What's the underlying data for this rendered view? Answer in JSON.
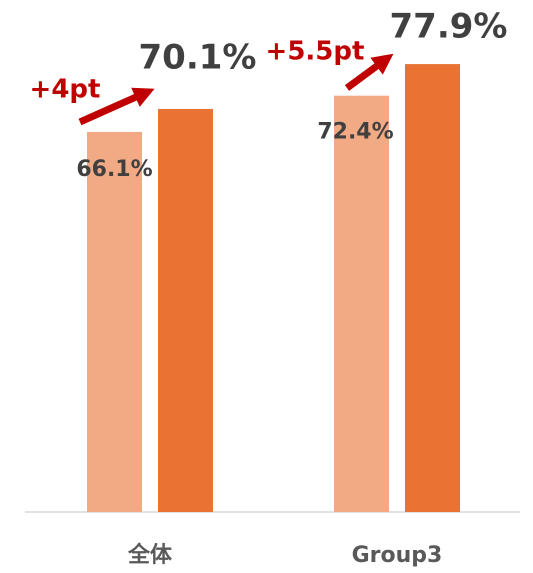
{
  "chart_data": {
    "type": "bar",
    "categories": [
      "全体",
      "Group3"
    ],
    "series": [
      {
        "color": "#f2aa84",
        "values": [
          66.1,
          72.4
        ],
        "value_labels": [
          "66.1%",
          "72.4%"
        ]
      },
      {
        "color": "#ea7334",
        "values": [
          70.1,
          77.9
        ],
        "value_labels": [
          "70.1%",
          "77.9%"
        ]
      }
    ],
    "annotations": [
      "+4pt",
      "+5.5pt"
    ],
    "annotation_color": "#c00000"
  }
}
